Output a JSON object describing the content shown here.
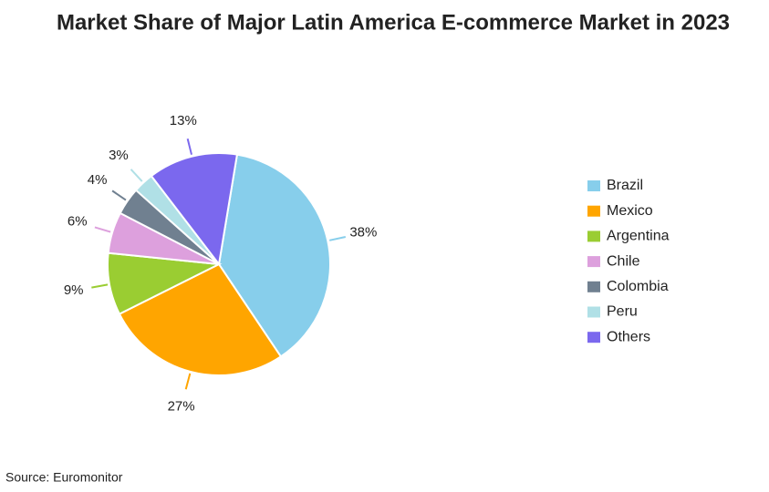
{
  "chart_data": {
    "type": "pie",
    "title": "Market Share of Major Latin America E-commerce Market in 2023",
    "categories": [
      "Brazil",
      "Mexico",
      "Argentina",
      "Chile",
      "Colombia",
      "Peru",
      "Others"
    ],
    "values": [
      38,
      27,
      9,
      6,
      4,
      3,
      13
    ],
    "value_labels": [
      "38%",
      "27%",
      "9%",
      "6%",
      "4%",
      "3%",
      "13%"
    ],
    "colors": [
      "#87ceeb",
      "#ffa500",
      "#9acd32",
      "#dda0dd",
      "#708090",
      "#b0e0e6",
      "#7b68ee"
    ],
    "legend": "right",
    "source": "Source: Euromonitor"
  }
}
